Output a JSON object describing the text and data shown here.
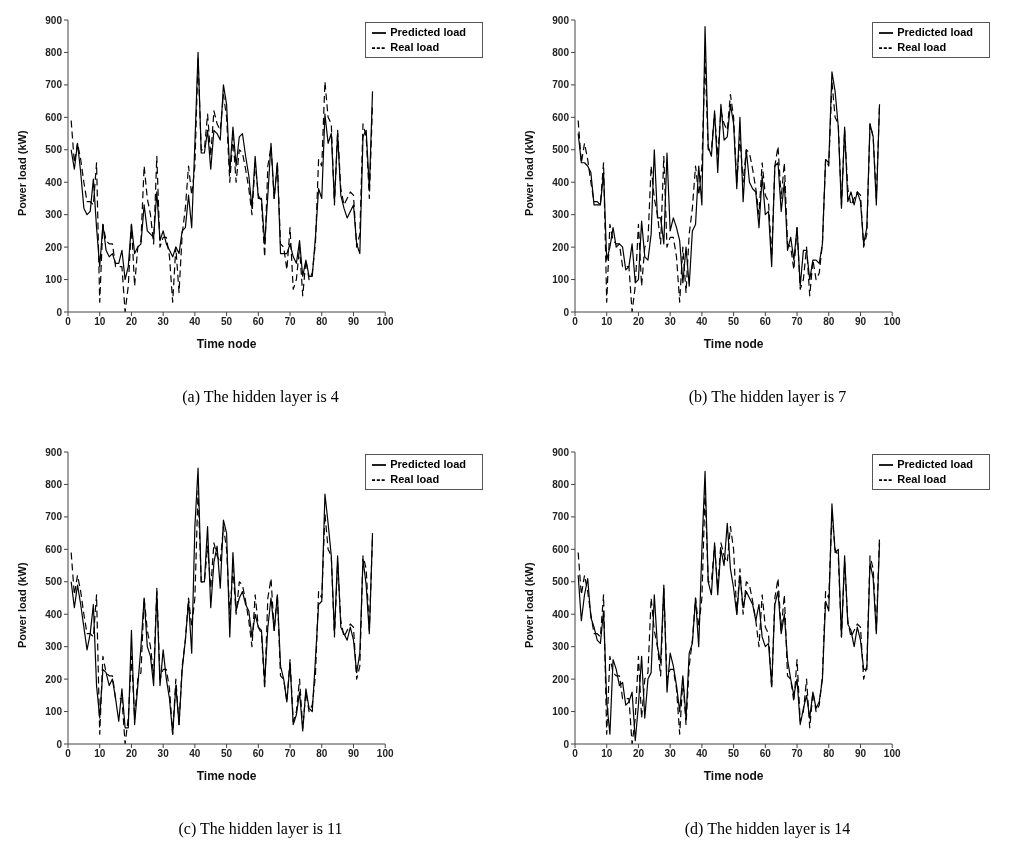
{
  "chart_data": [
    {
      "type": "line",
      "xlabel": "Time node",
      "ylabel": "Power load (kW)",
      "annotations": [
        "(a) The hidden layer is 4"
      ],
      "legend": "top right",
      "xlim": [
        0,
        100
      ],
      "xticks": [
        0,
        10,
        20,
        30,
        40,
        50,
        60,
        70,
        80,
        90,
        100
      ],
      "ylim": [
        0,
        900
      ],
      "yticks": [
        0,
        100,
        200,
        300,
        400,
        500,
        600,
        700,
        800,
        900
      ],
      "x": [
        1,
        2,
        3,
        4,
        5,
        6,
        7,
        8,
        9,
        10,
        11,
        12,
        13,
        14,
        15,
        16,
        17,
        18,
        19,
        20,
        21,
        22,
        23,
        24,
        25,
        26,
        27,
        28,
        29,
        30,
        31,
        32,
        33,
        34,
        35,
        36,
        37,
        38,
        39,
        40,
        41,
        42,
        43,
        44,
        45,
        46,
        47,
        48,
        49,
        50,
        51,
        52,
        53,
        54,
        55,
        56,
        57,
        58,
        59,
        60,
        61,
        62,
        63,
        64,
        65,
        66,
        67,
        68,
        69,
        70,
        71,
        72,
        73,
        74,
        75,
        76,
        77,
        78,
        79,
        80,
        81,
        82,
        83,
        84,
        85,
        86,
        87,
        88,
        89,
        90,
        91,
        92,
        93,
        94,
        95,
        96
      ],
      "series": [
        {
          "name": "Predicted load",
          "color": "#000000",
          "line_style": "solid",
          "values": [
            500,
            440,
            520,
            430,
            320,
            300,
            310,
            410,
            260,
            140,
            270,
            190,
            170,
            180,
            150,
            150,
            190,
            100,
            140,
            270,
            180,
            200,
            210,
            330,
            250,
            240,
            230,
            370,
            220,
            250,
            210,
            190,
            170,
            200,
            180,
            250,
            260,
            360,
            260,
            520,
            800,
            490,
            490,
            560,
            440,
            560,
            550,
            530,
            700,
            640,
            430,
            570,
            450,
            540,
            550,
            480,
            420,
            320,
            480,
            350,
            350,
            210,
            360,
            520,
            350,
            460,
            180,
            180,
            180,
            210,
            170,
            150,
            220,
            110,
            160,
            110,
            110,
            230,
            380,
            350,
            610,
            520,
            550,
            340,
            550,
            360,
            320,
            290,
            310,
            330,
            210,
            180,
            540,
            560,
            380,
            680
          ]
        },
        {
          "name": "Real load",
          "color": "#000000",
          "line_style": "dashed",
          "values": [
            590,
            460,
            520,
            470,
            400,
            340,
            340,
            330,
            460,
            30,
            270,
            220,
            210,
            210,
            140,
            140,
            140,
            0,
            80,
            270,
            80,
            200,
            220,
            450,
            350,
            300,
            210,
            480,
            200,
            230,
            230,
            170,
            30,
            200,
            60,
            240,
            320,
            450,
            360,
            450,
            780,
            500,
            500,
            610,
            480,
            620,
            580,
            560,
            670,
            600,
            400,
            540,
            400,
            500,
            490,
            440,
            380,
            300,
            460,
            360,
            340,
            170,
            450,
            510,
            350,
            460,
            210,
            200,
            130,
            260,
            70,
            100,
            200,
            50,
            160,
            100,
            120,
            210,
            470,
            450,
            710,
            600,
            580,
            330,
            560,
            380,
            330,
            350,
            370,
            360,
            200,
            240,
            580,
            540,
            350,
            640
          ]
        }
      ]
    },
    {
      "type": "line",
      "xlabel": "Time node",
      "ylabel": "Power load (kW)",
      "annotations": [
        "(b) The hidden layer is 7"
      ],
      "legend": "top right",
      "xlim": [
        0,
        100
      ],
      "xticks": [
        0,
        10,
        20,
        30,
        40,
        50,
        60,
        70,
        80,
        90,
        100
      ],
      "ylim": [
        0,
        900
      ],
      "yticks": [
        0,
        100,
        200,
        300,
        400,
        500,
        600,
        700,
        800,
        900
      ],
      "x": [
        1,
        2,
        3,
        4,
        5,
        6,
        7,
        8,
        9,
        10,
        11,
        12,
        13,
        14,
        15,
        16,
        17,
        18,
        19,
        20,
        21,
        22,
        23,
        24,
        25,
        26,
        27,
        28,
        29,
        30,
        31,
        32,
        33,
        34,
        35,
        36,
        37,
        38,
        39,
        40,
        41,
        42,
        43,
        44,
        45,
        46,
        47,
        48,
        49,
        50,
        51,
        52,
        53,
        54,
        55,
        56,
        57,
        58,
        59,
        60,
        61,
        62,
        63,
        64,
        65,
        66,
        67,
        68,
        69,
        70,
        71,
        72,
        73,
        74,
        75,
        76,
        77,
        78,
        79,
        80,
        81,
        82,
        83,
        84,
        85,
        86,
        87,
        88,
        89,
        90,
        91,
        92,
        93,
        94,
        95,
        96
      ],
      "series": [
        {
          "name": "Predicted load",
          "color": "#000000",
          "line_style": "solid",
          "values": [
            550,
            460,
            460,
            450,
            430,
            330,
            330,
            330,
            430,
            160,
            200,
            260,
            200,
            210,
            200,
            130,
            140,
            210,
            90,
            100,
            280,
            170,
            160,
            240,
            500,
            290,
            290,
            210,
            490,
            250,
            290,
            260,
            220,
            90,
            200,
            80,
            250,
            270,
            450,
            330,
            880,
            510,
            480,
            620,
            430,
            640,
            530,
            540,
            640,
            580,
            380,
            600,
            340,
            500,
            400,
            380,
            370,
            260,
            420,
            300,
            310,
            140,
            450,
            460,
            310,
            400,
            190,
            230,
            160,
            260,
            80,
            190,
            190,
            100,
            160,
            160,
            150,
            210,
            470,
            460,
            740,
            680,
            570,
            320,
            570,
            340,
            370,
            330,
            370,
            340,
            210,
            260,
            580,
            540,
            330,
            640
          ]
        },
        {
          "name": "Real load",
          "color": "#000000",
          "line_style": "dashed",
          "values": [
            590,
            460,
            520,
            470,
            400,
            340,
            340,
            330,
            460,
            30,
            270,
            220,
            210,
            210,
            140,
            140,
            140,
            0,
            80,
            270,
            80,
            200,
            220,
            450,
            350,
            300,
            210,
            480,
            200,
            230,
            230,
            170,
            30,
            200,
            60,
            240,
            320,
            450,
            360,
            450,
            780,
            500,
            500,
            610,
            480,
            620,
            580,
            560,
            670,
            600,
            400,
            540,
            400,
            500,
            490,
            440,
            380,
            300,
            460,
            360,
            340,
            170,
            450,
            510,
            350,
            460,
            210,
            200,
            130,
            260,
            70,
            100,
            200,
            50,
            160,
            100,
            120,
            210,
            470,
            450,
            710,
            600,
            580,
            330,
            560,
            380,
            330,
            350,
            370,
            360,
            200,
            240,
            580,
            540,
            350,
            640
          ]
        }
      ]
    },
    {
      "type": "line",
      "xlabel": "Time node",
      "ylabel": "Power load (kW)",
      "annotations": [
        "(c) The hidden layer is 11"
      ],
      "legend": "top right",
      "xlim": [
        0,
        100
      ],
      "xticks": [
        0,
        10,
        20,
        30,
        40,
        50,
        60,
        70,
        80,
        90,
        100
      ],
      "ylim": [
        0,
        900
      ],
      "yticks": [
        0,
        100,
        200,
        300,
        400,
        500,
        600,
        700,
        800,
        900
      ],
      "x": [
        1,
        2,
        3,
        4,
        5,
        6,
        7,
        8,
        9,
        10,
        11,
        12,
        13,
        14,
        15,
        16,
        17,
        18,
        19,
        20,
        21,
        22,
        23,
        24,
        25,
        26,
        27,
        28,
        29,
        30,
        31,
        32,
        33,
        34,
        35,
        36,
        37,
        38,
        39,
        40,
        41,
        42,
        43,
        44,
        45,
        46,
        47,
        48,
        49,
        50,
        51,
        52,
        53,
        54,
        55,
        56,
        57,
        58,
        59,
        60,
        61,
        62,
        63,
        64,
        65,
        66,
        67,
        68,
        69,
        70,
        71,
        72,
        73,
        74,
        75,
        76,
        77,
        78,
        79,
        80,
        81,
        82,
        83,
        84,
        85,
        86,
        87,
        88,
        89,
        90,
        91,
        92,
        93,
        94,
        95,
        96
      ],
      "series": [
        {
          "name": "Predicted load",
          "color": "#000000",
          "line_style": "solid",
          "values": [
            500,
            420,
            490,
            430,
            360,
            290,
            340,
            430,
            180,
            80,
            230,
            220,
            180,
            200,
            140,
            70,
            170,
            50,
            50,
            350,
            60,
            180,
            300,
            450,
            300,
            270,
            180,
            470,
            180,
            290,
            200,
            140,
            30,
            180,
            60,
            230,
            320,
            440,
            280,
            670,
            850,
            500,
            500,
            670,
            420,
            560,
            610,
            480,
            690,
            650,
            330,
            590,
            410,
            450,
            470,
            430,
            410,
            330,
            400,
            360,
            350,
            190,
            360,
            450,
            350,
            460,
            240,
            200,
            130,
            250,
            60,
            90,
            160,
            40,
            170,
            110,
            100,
            260,
            430,
            440,
            770,
            680,
            580,
            340,
            580,
            360,
            340,
            320,
            360,
            320,
            220,
            280,
            570,
            490,
            340,
            650
          ]
        },
        {
          "name": "Real load",
          "color": "#000000",
          "line_style": "dashed",
          "values": [
            590,
            460,
            520,
            470,
            400,
            340,
            340,
            330,
            460,
            30,
            270,
            220,
            210,
            210,
            140,
            140,
            140,
            0,
            80,
            270,
            80,
            200,
            220,
            450,
            350,
            300,
            210,
            480,
            200,
            230,
            230,
            170,
            30,
            200,
            60,
            240,
            320,
            450,
            360,
            450,
            780,
            500,
            500,
            610,
            480,
            620,
            580,
            560,
            670,
            600,
            400,
            540,
            400,
            500,
            490,
            440,
            380,
            300,
            460,
            360,
            340,
            170,
            450,
            510,
            350,
            460,
            210,
            200,
            130,
            260,
            70,
            100,
            200,
            50,
            160,
            100,
            120,
            210,
            470,
            450,
            710,
            600,
            580,
            330,
            560,
            380,
            330,
            350,
            370,
            360,
            200,
            240,
            580,
            540,
            350,
            640
          ]
        }
      ]
    },
    {
      "type": "line",
      "xlabel": "Time node",
      "ylabel": "Power load (kW)",
      "annotations": [
        "(d) The hidden layer is 14"
      ],
      "legend": "top right",
      "xlim": [
        0,
        100
      ],
      "xticks": [
        0,
        10,
        20,
        30,
        40,
        50,
        60,
        70,
        80,
        90,
        100
      ],
      "ylim": [
        0,
        900
      ],
      "yticks": [
        0,
        100,
        200,
        300,
        400,
        500,
        600,
        700,
        800,
        900
      ],
      "x": [
        1,
        2,
        3,
        4,
        5,
        6,
        7,
        8,
        9,
        10,
        11,
        12,
        13,
        14,
        15,
        16,
        17,
        18,
        19,
        20,
        21,
        22,
        23,
        24,
        25,
        26,
        27,
        28,
        29,
        30,
        31,
        32,
        33,
        34,
        35,
        36,
        37,
        38,
        39,
        40,
        41,
        42,
        43,
        44,
        45,
        46,
        47,
        48,
        49,
        50,
        51,
        52,
        53,
        54,
        55,
        56,
        57,
        58,
        59,
        60,
        61,
        62,
        63,
        64,
        65,
        66,
        67,
        68,
        69,
        70,
        71,
        72,
        73,
        74,
        75,
        76,
        77,
        78,
        79,
        80,
        81,
        82,
        83,
        84,
        85,
        86,
        87,
        88,
        89,
        90,
        91,
        92,
        93,
        94,
        95,
        96
      ],
      "series": [
        {
          "name": "Predicted load",
          "color": "#000000",
          "line_style": "solid",
          "values": [
            520,
            380,
            460,
            510,
            390,
            360,
            320,
            310,
            410,
            130,
            30,
            260,
            230,
            180,
            190,
            120,
            130,
            160,
            10,
            120,
            270,
            80,
            200,
            220,
            460,
            300,
            250,
            490,
            160,
            280,
            240,
            180,
            100,
            210,
            80,
            280,
            310,
            450,
            300,
            600,
            840,
            500,
            460,
            620,
            460,
            600,
            550,
            680,
            540,
            480,
            400,
            520,
            420,
            470,
            450,
            430,
            380,
            430,
            330,
            300,
            310,
            180,
            430,
            470,
            340,
            400,
            260,
            200,
            150,
            200,
            60,
            110,
            150,
            80,
            160,
            110,
            130,
            200,
            440,
            410,
            740,
            590,
            600,
            330,
            580,
            370,
            350,
            300,
            360,
            320,
            230,
            230,
            560,
            510,
            340,
            620
          ]
        },
        {
          "name": "Real load",
          "color": "#000000",
          "line_style": "dashed",
          "values": [
            590,
            460,
            520,
            470,
            400,
            340,
            340,
            330,
            460,
            30,
            270,
            220,
            210,
            210,
            140,
            140,
            140,
            0,
            80,
            270,
            80,
            200,
            220,
            450,
            350,
            300,
            210,
            480,
            200,
            230,
            230,
            170,
            30,
            200,
            60,
            240,
            320,
            450,
            360,
            450,
            780,
            500,
            500,
            610,
            480,
            620,
            580,
            560,
            670,
            600,
            400,
            540,
            400,
            500,
            490,
            440,
            380,
            300,
            460,
            360,
            340,
            170,
            450,
            510,
            350,
            460,
            210,
            200,
            130,
            260,
            70,
            100,
            200,
            50,
            160,
            100,
            120,
            210,
            470,
            450,
            710,
            600,
            580,
            330,
            560,
            380,
            330,
            350,
            370,
            360,
            200,
            240,
            580,
            540,
            350,
            640
          ]
        }
      ]
    }
  ]
}
